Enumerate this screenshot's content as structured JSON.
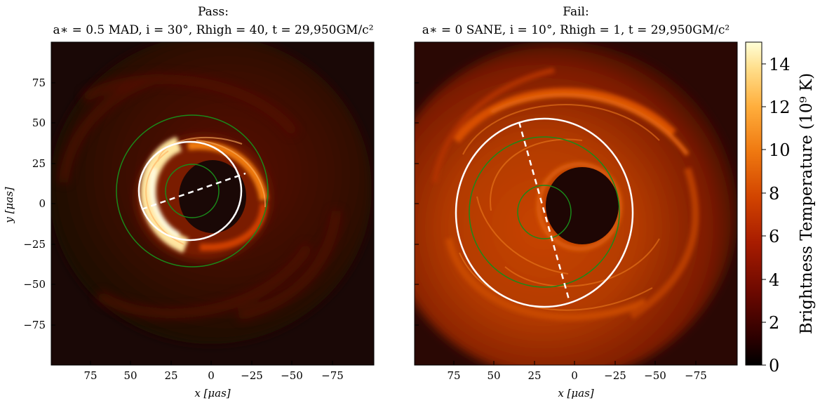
{
  "figure": {
    "colorbar": {
      "label": "Brightness Temperature (10⁹ K)",
      "ticks": [
        "0",
        "2",
        "4",
        "6",
        "8",
        "10",
        "12",
        "14"
      ],
      "range": [
        0,
        15
      ],
      "colormap": [
        "#000000",
        "#3a0000",
        "#7a0a00",
        "#b02200",
        "#d84a00",
        "#f07a10",
        "#ffb040",
        "#ffe090",
        "#ffffd8"
      ]
    }
  },
  "chart_data": [
    {
      "type": "heatmap",
      "title": "Pass:",
      "subtitle": "a∗ = 0.5 MAD, i = 30°, Rhigh = 40, t = 29,950GM/c²",
      "xlabel": "x [μas]",
      "ylabel": "y [μas]",
      "xlim": [
        100,
        -100
      ],
      "ylim": [
        -100,
        100
      ],
      "xticks": [
        "75",
        "50",
        "25",
        "0",
        "−25",
        "−50",
        "−75"
      ],
      "yticks": [
        "75",
        "50",
        "25",
        "0",
        "−25",
        "−50",
        "−75"
      ],
      "overlay_colors": {
        "fit_ring": "#ffffff",
        "bounds": "#1a8a1a"
      }
    },
    {
      "type": "heatmap",
      "title": "Fail:",
      "subtitle": "a∗ = 0 SANE, i = 10°, Rhigh = 1, t = 29,950GM/c²",
      "xlabel": "x [μas]",
      "ylabel": "",
      "xlim": [
        100,
        -100
      ],
      "ylim": [
        -100,
        100
      ],
      "xticks": [
        "75",
        "50",
        "25",
        "0",
        "−25",
        "−50",
        "−75"
      ],
      "yticks": [],
      "overlay_colors": {
        "fit_ring": "#ffffff",
        "bounds": "#1a8a1a"
      }
    }
  ]
}
